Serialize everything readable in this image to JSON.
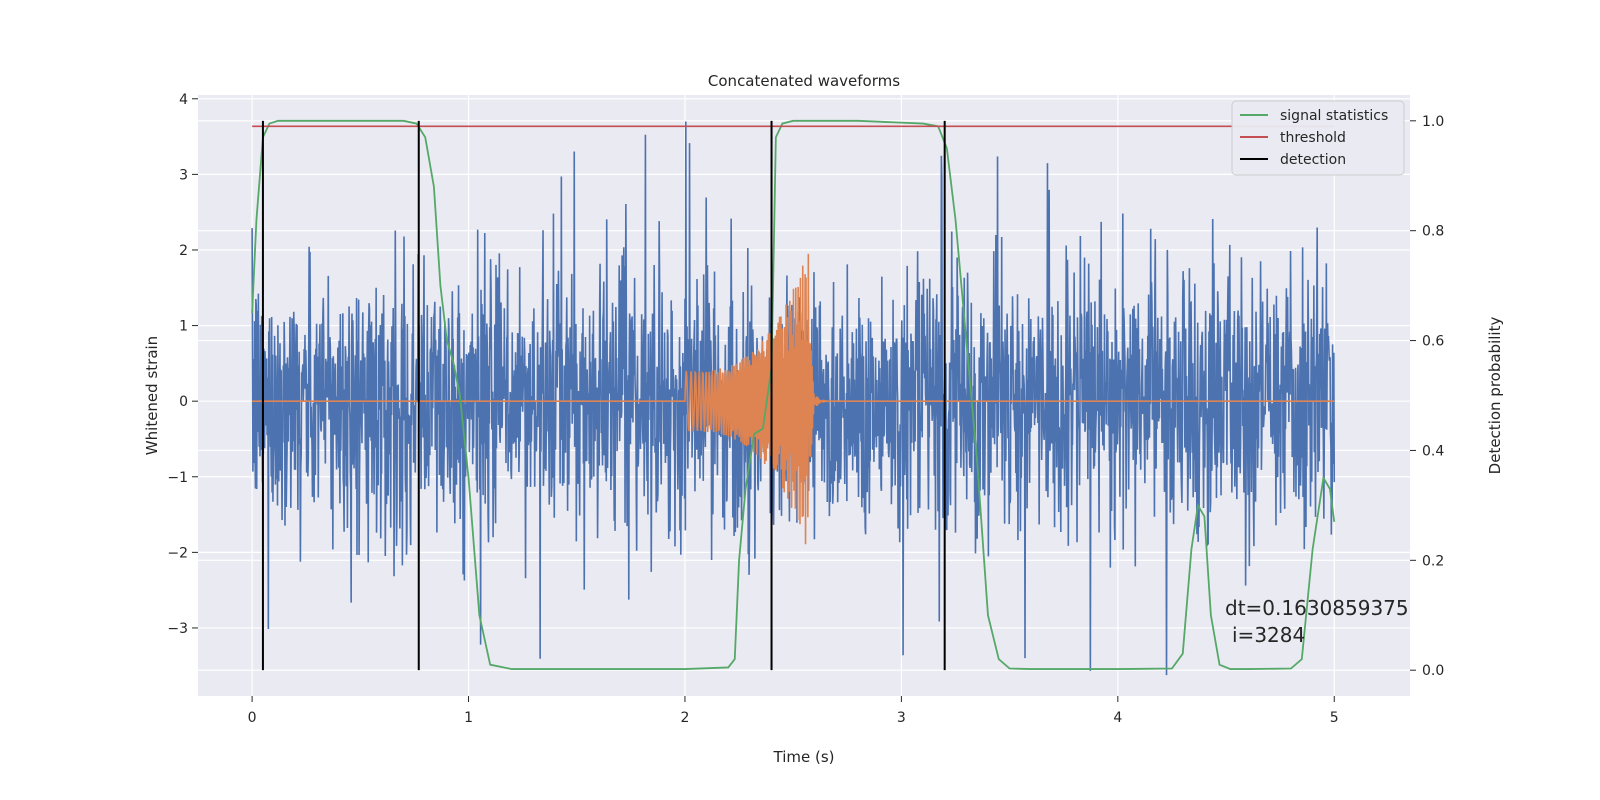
{
  "chart_data": {
    "type": "line",
    "title": "Concatenated waveforms",
    "xlabel": "Time (s)",
    "ylabel": "Whitened strain",
    "y2label": "Detection probability",
    "xlim": [
      -0.25,
      5.35
    ],
    "ylim": [
      -3.9,
      4.05
    ],
    "y2lim": [
      -0.047,
      1.047
    ],
    "xticks": [
      0,
      1,
      2,
      3,
      4,
      5
    ],
    "yticks": [
      -3,
      -2,
      -1,
      0,
      1,
      2,
      3,
      4
    ],
    "y2ticks": [
      0.0,
      0.2,
      0.4,
      0.6,
      0.8,
      1.0
    ],
    "grid": true,
    "legend_position": "top-right",
    "legend": [
      "signal statistics",
      "threshold",
      "detection"
    ],
    "colors": {
      "strain": "#4c72b0",
      "injected_signal": "#dd8452",
      "signal_statistics": "#55a868",
      "threshold": "#c44e52",
      "detection": "#000000",
      "plot_background": "#eaeaf2",
      "grid": "#ffffff"
    },
    "strain_noise": {
      "t_start": 0.0,
      "t_end": 5.0,
      "typical_amplitude": 1.5,
      "peak_amplitude": 3.7
    },
    "injected_signal": {
      "t_start": 2.0,
      "t_merger": 2.57,
      "t_end": 5.0,
      "start_amplitude": 0.4,
      "peak_amplitude": 2.0
    },
    "series": [
      {
        "name": "signal statistics",
        "axis": "right",
        "x": [
          0.0,
          0.02,
          0.05,
          0.08,
          0.12,
          0.2,
          0.5,
          0.7,
          0.76,
          0.8,
          0.84,
          0.87,
          0.9,
          0.93,
          0.96,
          1.0,
          1.05,
          1.1,
          1.2,
          1.5,
          2.0,
          2.2,
          2.23,
          2.25,
          2.28,
          2.32,
          2.36,
          2.4,
          2.42,
          2.45,
          2.5,
          2.8,
          3.1,
          3.17,
          3.21,
          3.25,
          3.3,
          3.35,
          3.4,
          3.45,
          3.5,
          3.6,
          4.0,
          4.25,
          4.3,
          4.34,
          4.37,
          4.4,
          4.43,
          4.47,
          4.52,
          4.6,
          4.8,
          4.85,
          4.9,
          4.95,
          4.98,
          5.0
        ],
        "values": [
          0.65,
          0.82,
          0.97,
          0.995,
          1.0,
          1.0,
          1.0,
          1.0,
          0.995,
          0.97,
          0.88,
          0.7,
          0.6,
          0.56,
          0.5,
          0.35,
          0.1,
          0.01,
          0.002,
          0.002,
          0.002,
          0.005,
          0.02,
          0.2,
          0.33,
          0.43,
          0.44,
          0.55,
          0.97,
          0.995,
          1.0,
          1.0,
          0.995,
          0.99,
          0.95,
          0.82,
          0.6,
          0.38,
          0.1,
          0.02,
          0.003,
          0.002,
          0.002,
          0.003,
          0.03,
          0.22,
          0.3,
          0.28,
          0.1,
          0.01,
          0.002,
          0.002,
          0.003,
          0.02,
          0.22,
          0.35,
          0.33,
          0.27
        ]
      },
      {
        "name": "threshold",
        "axis": "right",
        "x": [
          0.0,
          5.0
        ],
        "values": [
          0.99,
          0.99
        ]
      },
      {
        "name": "detection",
        "axis": "right",
        "x": [
          0.05,
          0.77,
          2.4,
          3.2
        ],
        "values": [
          [
            0.0,
            1.0
          ],
          [
            0.0,
            1.0
          ],
          [
            0.0,
            1.0
          ],
          [
            0.0,
            1.0
          ]
        ]
      }
    ],
    "annotations": [
      "dt=0.1630859375",
      "i=3284"
    ]
  }
}
